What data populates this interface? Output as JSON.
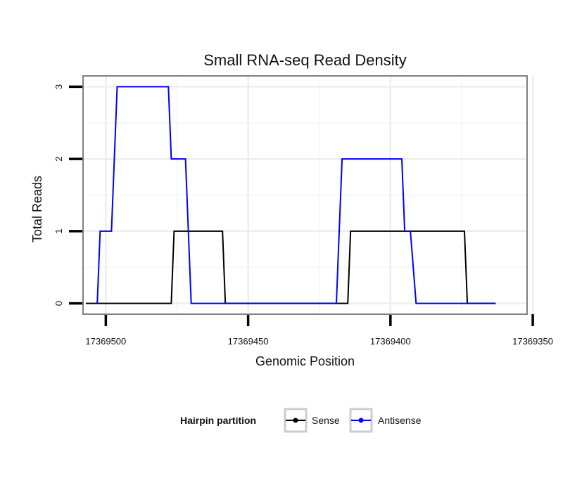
{
  "chart_data": {
    "type": "line",
    "title": "Small RNA-seq Read Density",
    "xlabel": "Genomic Position",
    "ylabel": "Total Reads",
    "x_reversed": true,
    "xlim": [
      17369352,
      17369508
    ],
    "ylim": [
      -0.15,
      3.15
    ],
    "x_ticks": [
      17369500,
      17369450,
      17369400,
      17369350
    ],
    "x_tick_labels": [
      "17369500",
      "17369450",
      "17369400",
      "17369350"
    ],
    "y_ticks": [
      0,
      1,
      2,
      3
    ],
    "y_tick_labels": [
      "0",
      "1",
      "2",
      "3"
    ],
    "grid": true,
    "legend": {
      "title": "Hairpin partition",
      "position": "bottom",
      "entries": [
        {
          "label": "Sense",
          "color": "#000000"
        },
        {
          "label": "Antisense",
          "color": "#0000ff"
        }
      ]
    },
    "series": [
      {
        "name": "Sense",
        "color": "#000000",
        "x": [
          17369507,
          17369477,
          17369476,
          17369459,
          17369458,
          17369415,
          17369414,
          17369374,
          17369373,
          17369363
        ],
        "y": [
          0,
          0,
          1,
          1,
          0,
          0,
          1,
          1,
          0,
          0
        ]
      },
      {
        "name": "Antisense",
        "color": "#0000ff",
        "x": [
          17369503,
          17369502,
          17369498,
          17369496,
          17369478,
          17369477,
          17369472,
          17369470,
          17369458,
          17369457,
          17369419,
          17369417,
          17369396,
          17369395,
          17369393,
          17369391,
          17369380,
          17369378,
          17369363
        ],
        "y": [
          0,
          1,
          1,
          3,
          3,
          2,
          2,
          0,
          0,
          0,
          0,
          2,
          2,
          1,
          1,
          0,
          0,
          0,
          0
        ]
      }
    ]
  }
}
